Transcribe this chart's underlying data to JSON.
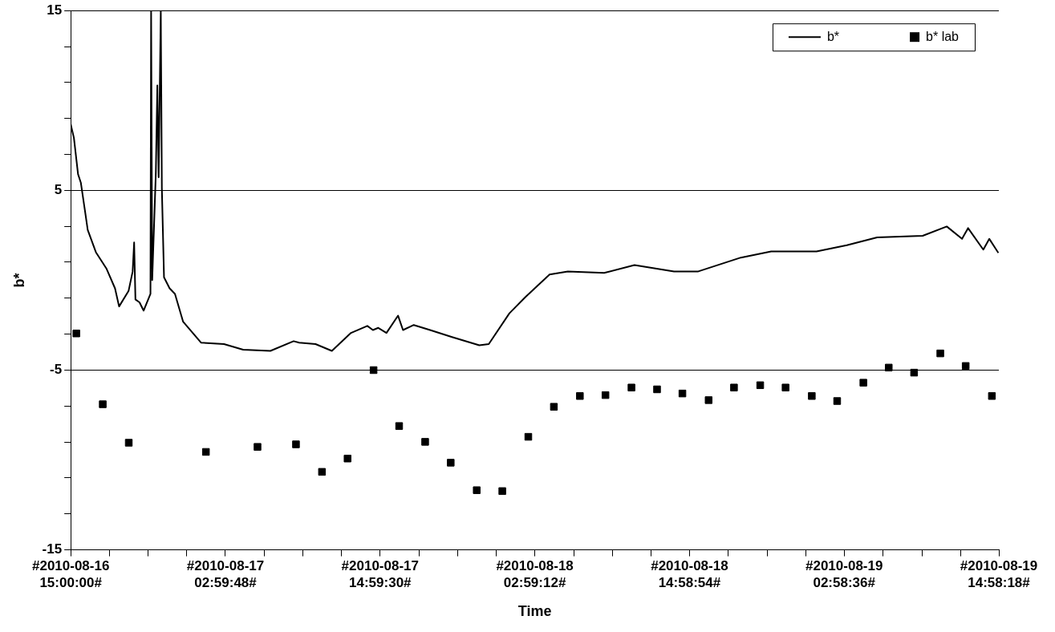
{
  "chart_data": {
    "type": "line",
    "xlabel": "Time",
    "ylabel": "b*",
    "xlim": [
      "2010-08-16T15:00:00",
      "2010-08-19T14:58:18"
    ],
    "xticks": [
      {
        "value": "2010-08-16T15:00:00",
        "label": "#2010-08-16 15:00:00#"
      },
      {
        "value": "2010-08-16T18:00",
        "label": null
      },
      {
        "value": "2010-08-16T21:00",
        "label": null
      },
      {
        "value": "2010-08-17T00:00",
        "label": null
      },
      {
        "value": "2010-08-17T02:59:48",
        "label": "#2010-08-17 02:59:48#"
      },
      {
        "value": "2010-08-17T06:00",
        "label": null
      },
      {
        "value": "2010-08-17T09:00",
        "label": null
      },
      {
        "value": "2010-08-17T12:00",
        "label": null
      },
      {
        "value": "2010-08-17T14:59:30",
        "label": "#2010-08-17 14:59:30#"
      },
      {
        "value": "2010-08-17T18:00",
        "label": null
      },
      {
        "value": "2010-08-17T21:00",
        "label": null
      },
      {
        "value": "2010-08-18T00:00",
        "label": null
      },
      {
        "value": "2010-08-18T02:59:12",
        "label": "#2010-08-18 02:59:12#"
      },
      {
        "value": "2010-08-18T06:00",
        "label": null
      },
      {
        "value": "2010-08-18T09:00",
        "label": null
      },
      {
        "value": "2010-08-18T12:00",
        "label": null
      },
      {
        "value": "2010-08-18T14:58:54",
        "label": "#2010-08-18 14:58:54#"
      },
      {
        "value": "2010-08-18T18:00",
        "label": null
      },
      {
        "value": "2010-08-18T21:00",
        "label": null
      },
      {
        "value": "2010-08-19T00:00",
        "label": null
      },
      {
        "value": "2010-08-19T02:58:36",
        "label": "#2010-08-19 02:58:36#"
      },
      {
        "value": "2010-08-19T06:00",
        "label": null
      },
      {
        "value": "2010-08-19T09:00",
        "label": null
      },
      {
        "value": "2010-08-19T12:00",
        "label": null
      },
      {
        "value": "2010-08-19T14:58:18",
        "label": "#2010-08-19 14:58:18#"
      }
    ],
    "ylim": [
      -15,
      15
    ],
    "yticks": [
      -15,
      {
        "value": -13,
        "label": null
      },
      {
        "value": -11,
        "label": null
      },
      {
        "value": -9,
        "label": null
      },
      {
        "value": -7,
        "label": null
      },
      -5,
      {
        "value": -3,
        "label": null
      },
      {
        "value": -1,
        "label": null
      },
      {
        "value": 1,
        "label": null
      },
      {
        "value": 3,
        "label": null
      },
      5,
      {
        "value": 7,
        "label": null
      },
      {
        "value": 9,
        "label": null
      },
      {
        "value": 11,
        "label": null
      },
      {
        "value": 13,
        "label": null
      },
      15
    ],
    "grid": "y",
    "legend": "top right",
    "series": [
      {
        "name": "b*",
        "color": "#000000",
        "marker": "none",
        "x": [
          "2010-08-16T15:00",
          "2010-08-16T15:15",
          "2010-08-16T15:34",
          "2010-08-16T15:47",
          "2010-08-16T16:06",
          "2010-08-16T16:19",
          "2010-08-16T16:57",
          "2010-08-16T17:47",
          "2010-08-16T18:26",
          "2010-08-16T18:45",
          "2010-08-16T19:29",
          "2010-08-16T19:48",
          "2010-08-16T19:55",
          "2010-08-16T20:01",
          "2010-08-16T20:20",
          "2010-08-16T20:39",
          "2010-08-16T21:11",
          "2010-08-16T21:14",
          "2010-08-16T21:19",
          "2010-08-16T21:36",
          "2010-08-16T21:43",
          "2010-08-16T21:49",
          "2010-08-16T21:59",
          "2010-08-16T22:04",
          "2010-08-16T22:14",
          "2010-08-16T22:40",
          "2010-08-16T23:05",
          "2010-08-16T23:43",
          "2010-08-17T01:06",
          "2010-08-17T02:53",
          "2010-08-17T04:22",
          "2010-08-17T06:29",
          "2010-08-17T08:17",
          "2010-08-17T08:43",
          "2010-08-17T09:59",
          "2010-08-17T11:15",
          "2010-08-17T12:44",
          "2010-08-17T14:00",
          "2010-08-17T14:26",
          "2010-08-17T14:51",
          "2010-08-17T15:29",
          "2010-08-17T16:23",
          "2010-08-17T16:46",
          "2010-08-17T17:36",
          "2010-08-17T18:52",
          "2010-08-17T20:34",
          "2010-08-17T22:41",
          "2010-08-17T23:25",
          "2010-08-18T01:01",
          "2010-08-18T02:17",
          "2010-08-18T03:33",
          "2010-08-18T04:08",
          "2010-08-18T05:33",
          "2010-08-18T08:22",
          "2010-08-18T10:43",
          "2010-08-18T13:47",
          "2010-08-18T15:40",
          "2010-08-18T18:58",
          "2010-08-18T21:19",
          "2010-08-19T00:50",
          "2010-08-19T03:11",
          "2010-08-19T05:32",
          "2010-08-19T09:04",
          "2010-08-19T10:56",
          "2010-08-19T12:07",
          "2010-08-19T12:35",
          "2010-08-19T13:46",
          "2010-08-19T14:14",
          "2010-08-19T14:56"
        ],
        "values": [
          8.67,
          7.9,
          5.9,
          5.43,
          3.88,
          2.8,
          1.56,
          0.63,
          -0.45,
          -1.46,
          -0.6,
          0.48,
          2.1,
          -1.07,
          -1.23,
          -1.69,
          -0.76,
          15,
          0.01,
          6.0,
          10.84,
          5.73,
          15,
          5.1,
          0.16,
          -0.45,
          -0.76,
          -2.31,
          -3.47,
          -3.55,
          -3.86,
          -3.93,
          -3.39,
          -3.47,
          -3.55,
          -3.93,
          -2.93,
          -2.54,
          -2.77,
          -2.65,
          -2.93,
          -1.97,
          -2.77,
          -2.49,
          -2.77,
          -3.16,
          -3.62,
          -3.55,
          -1.84,
          -0.92,
          -0.07,
          0.32,
          0.49,
          0.41,
          0.84,
          0.49,
          0.49,
          1.26,
          1.6,
          1.6,
          1.95,
          2.38,
          2.47,
          2.99,
          2.3,
          2.9,
          1.7,
          2.3,
          1.52
        ]
      },
      {
        "name": "b* lab",
        "type": "scatter",
        "color": "#000000",
        "marker": "square",
        "x": [
          "2010-08-16T15:26",
          "2010-08-16T17:29",
          "2010-08-16T19:30",
          "2010-08-17T01:29",
          "2010-08-17T05:29",
          "2010-08-17T08:28",
          "2010-08-17T10:29",
          "2010-08-17T12:28",
          "2010-08-17T14:29",
          "2010-08-17T16:28",
          "2010-08-17T18:29",
          "2010-08-17T20:28",
          "2010-08-17T22:29",
          "2010-08-18T00:28",
          "2010-08-18T02:29",
          "2010-08-18T04:28",
          "2010-08-18T06:29",
          "2010-08-18T08:28",
          "2010-08-18T10:29",
          "2010-08-18T12:28",
          "2010-08-18T14:26",
          "2010-08-18T16:28",
          "2010-08-18T18:26",
          "2010-08-18T20:28",
          "2010-08-18T22:26",
          "2010-08-19T00:28",
          "2010-08-19T02:26",
          "2010-08-19T04:28",
          "2010-08-19T06:26",
          "2010-08-19T08:24",
          "2010-08-19T10:26",
          "2010-08-19T12:24",
          "2010-08-19T14:26"
        ],
        "values": [
          -2.96,
          -6.9,
          -9.04,
          -9.55,
          -9.27,
          -9.13,
          -10.66,
          -9.92,
          -5.0,
          -8.11,
          -8.99,
          -10.15,
          -11.68,
          -11.73,
          -8.71,
          -7.04,
          -6.44,
          -6.39,
          -5.97,
          -6.07,
          -6.3,
          -6.67,
          -5.97,
          -5.84,
          -5.97,
          -6.44,
          -6.72,
          -5.7,
          -4.86,
          -5.14,
          -4.07,
          -4.77,
          -6.44
        ]
      }
    ]
  }
}
